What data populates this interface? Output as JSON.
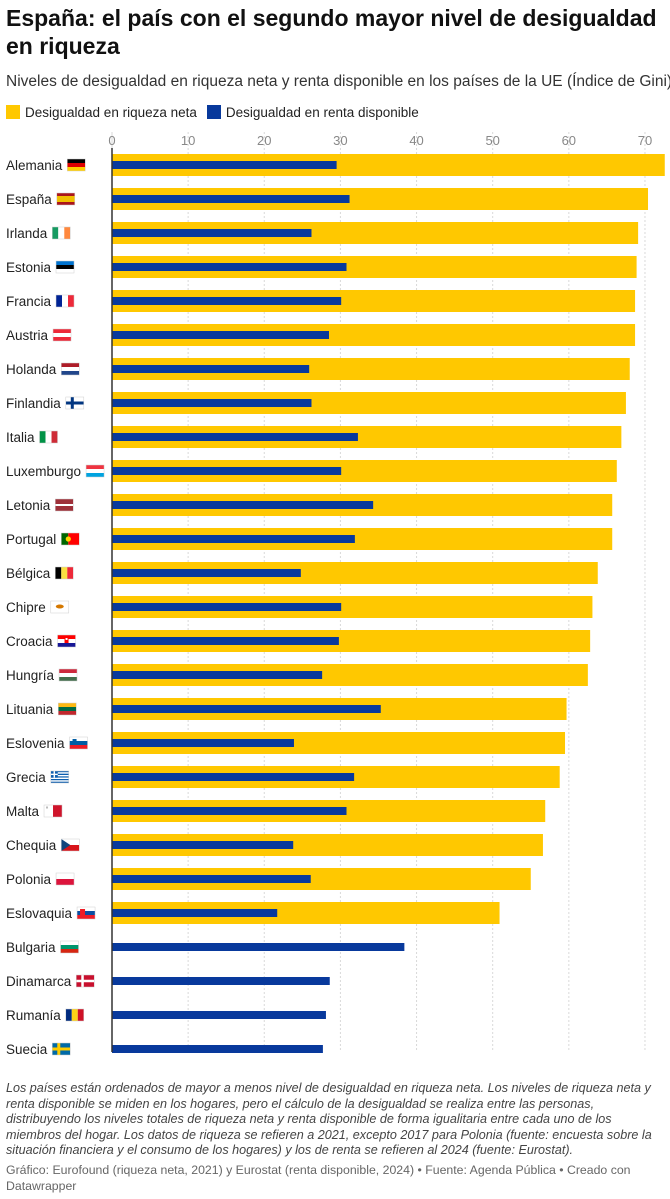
{
  "title": "España: el país con el segundo mayor nivel de desigualdad en riqueza",
  "subtitle": "Niveles de desigualdad en riqueza neta y renta disponible en los países de la UE (Índice de Gini)",
  "notes": "Los países están ordenados de mayor a menos nivel de desigualdad en riqueza neta. Los niveles de riqueza neta y renta disponible se miden en los hogares, pero el cálculo de la desigualdad se realiza entre las personas, distribuyendo los niveles totales de riqueza neta y renta disponible de forma igualitaria entre cada uno de los miembros del hogar. Los datos de riqueza se refieren a 2021, excepto 2017 para Polonia (fuente: encuesta sobre la situación financiera y el consumo de los hogares) y los de renta se refieren al 2024 (fuente: Eurostat).",
  "source": "Gráfico: Eurofound (riqueza neta, 2021) y Eurostat (renta disponible, 2024) • Fuente: Agenda Pública • Creado con Datawrapper",
  "colors": {
    "wealth": "#FFC800",
    "income": "#08399C",
    "grid": "#d9d9d9",
    "axis": "#333333",
    "tick": "#888888"
  },
  "chart_data": {
    "type": "bar",
    "orientation": "horizontal",
    "xlim": [
      0,
      72.5
    ],
    "ticks": [
      0,
      10,
      20,
      30,
      40,
      50,
      60,
      70
    ],
    "legend": "top-left",
    "categories": [
      "Alemania",
      "España",
      "Irlanda",
      "Estonia",
      "Francia",
      "Austria",
      "Holanda",
      "Finlandia",
      "Italia",
      "Luxemburgo",
      "Letonia",
      "Portugal",
      "Bélgica",
      "Chipre",
      "Croacia",
      "Hungría",
      "Lituania",
      "Eslovenia",
      "Grecia",
      "Malta",
      "Chequia",
      "Polonia",
      "Eslovaquia",
      "Bulgaria",
      "Dinamarca",
      "Rumanía",
      "Suecia"
    ],
    "series": [
      {
        "name": "Desigualdad en riqueza neta",
        "color": "#FFC800",
        "values": [
          72.6,
          70.4,
          69.1,
          68.9,
          68.7,
          68.7,
          68.0,
          67.5,
          66.9,
          66.3,
          65.7,
          65.7,
          63.8,
          63.1,
          62.8,
          62.5,
          59.7,
          59.5,
          58.8,
          56.9,
          56.6,
          55.0,
          50.9,
          null,
          null,
          null,
          null
        ]
      },
      {
        "name": "Desigualdad en renta disponible",
        "color": "#08399C",
        "values": [
          29.5,
          31.2,
          26.2,
          30.8,
          30.1,
          28.5,
          25.9,
          26.2,
          32.3,
          30.1,
          34.3,
          31.9,
          24.8,
          30.1,
          29.8,
          27.6,
          35.3,
          23.9,
          31.8,
          30.8,
          23.8,
          26.1,
          21.7,
          38.4,
          28.6,
          28.1,
          27.7
        ]
      }
    ]
  }
}
